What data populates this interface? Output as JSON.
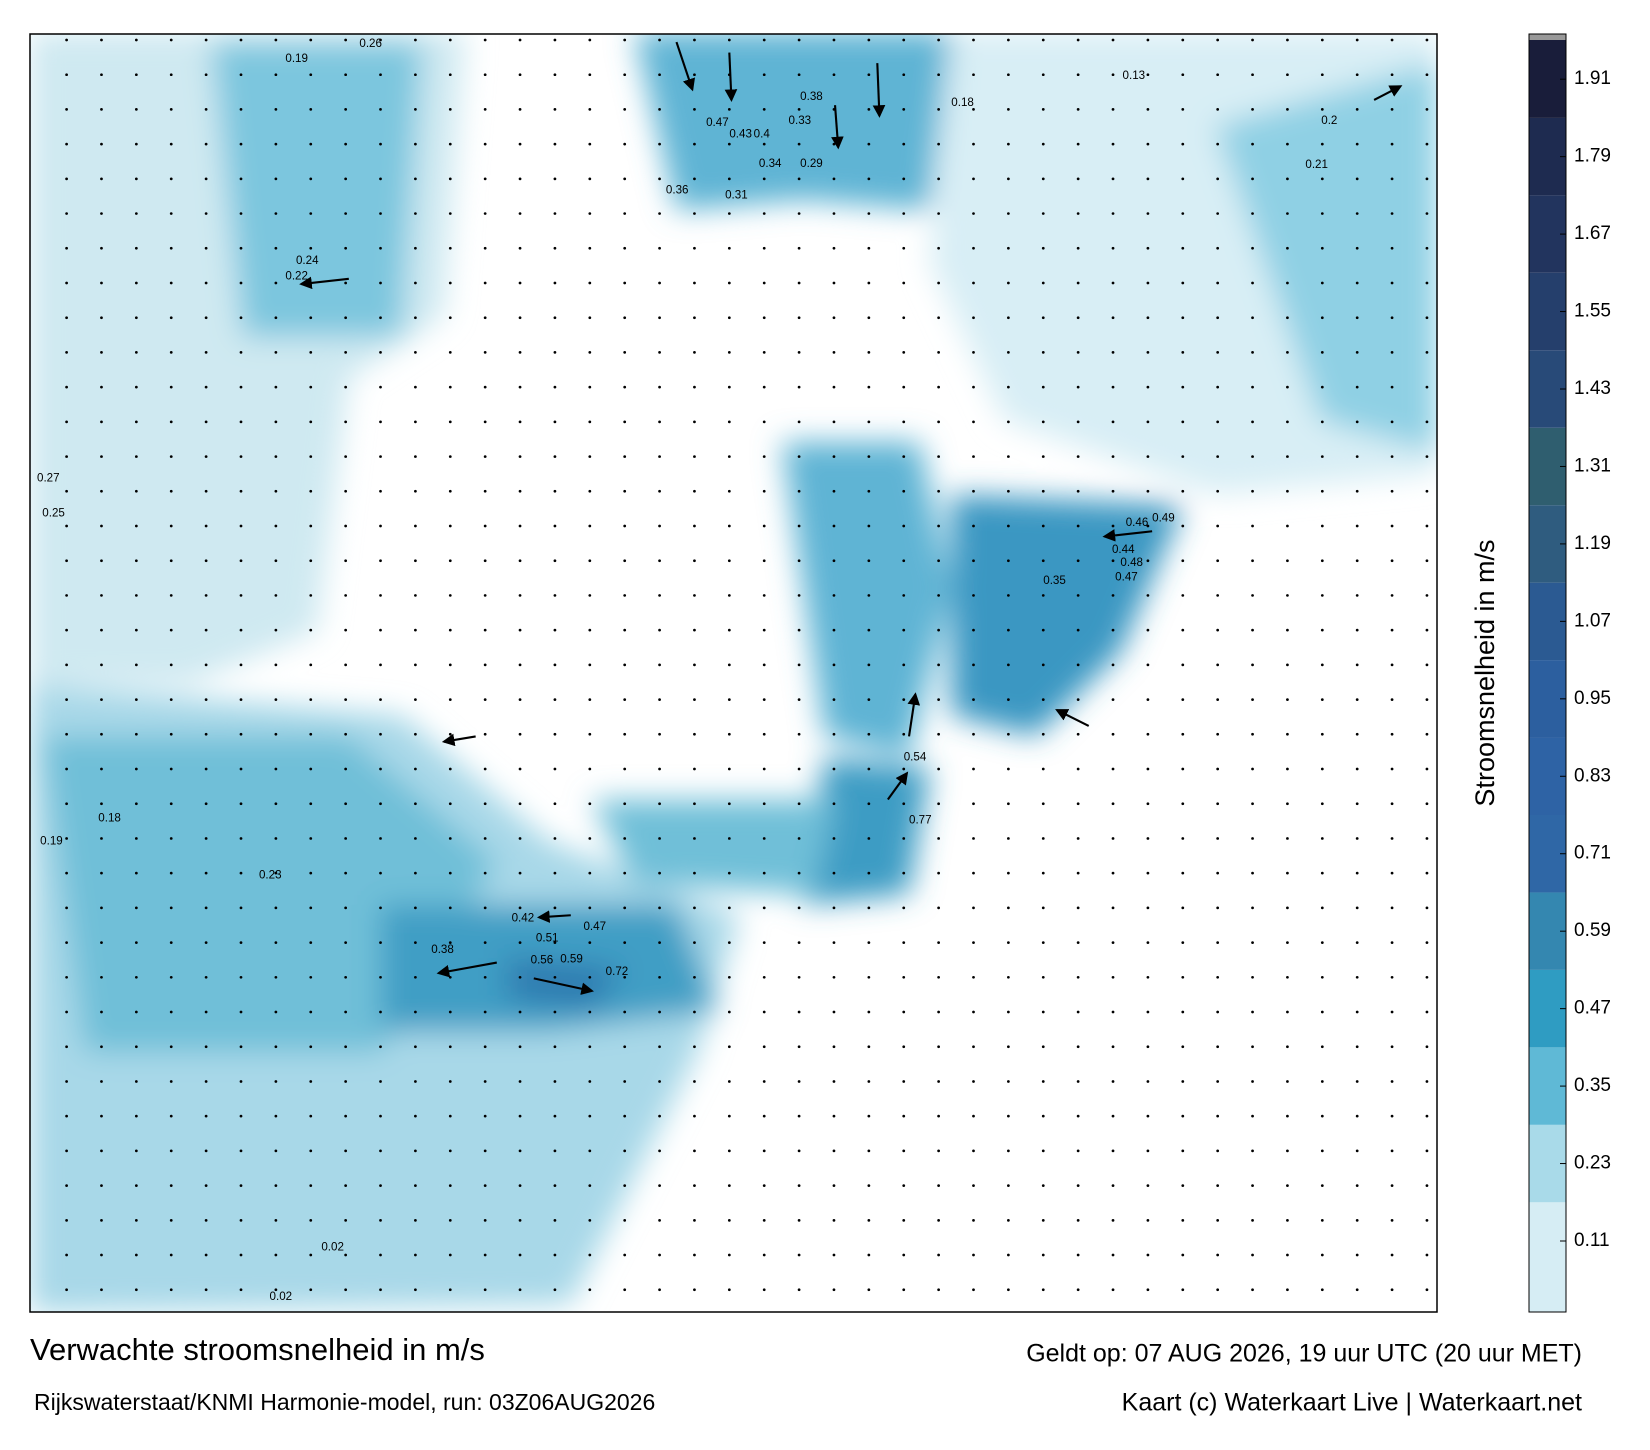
{
  "header": {
    "title": "Verwachte stroomsnelheid in m/s",
    "subtitle": "Rijkswaterstaat/KNMI Harmonie-model, run: 03Z06AUG2026",
    "valid": "Geldt op: 07 AUG 2026, 19 uur UTC (20 uur MET)",
    "credit": "Kaart (c) Waterkaart Live | Waterkaart.net"
  },
  "colorbar": {
    "label": "Stroomsnelheid in m/s",
    "range": [
      0,
      1.98
    ],
    "ticks": [
      0.11,
      0.23,
      0.35,
      0.47,
      0.59,
      0.71,
      0.83,
      0.95,
      1.07,
      1.19,
      1.31,
      1.43,
      1.55,
      1.67,
      1.79,
      1.91
    ],
    "colors": [
      "#d6edf4",
      "#a9dae9",
      "#5fb9d6",
      "#2f9cc2",
      "#3487b0",
      "#2f67a6",
      "#2e63a5",
      "#2c5f9f",
      "#2b5a92",
      "#2f5c7f",
      "#2f5e6f",
      "#284a78",
      "#253f6c",
      "#22345e",
      "#1e2b50",
      "#191d3a"
    ]
  },
  "map_labels": [
    0.47,
    0.43,
    0.4,
    0.38,
    0.33,
    0.34,
    0.29,
    0.36,
    0.31,
    0.46,
    0.49,
    0.44,
    0.48,
    0.47,
    0.35,
    0.54,
    0.77,
    0.42,
    0.51,
    0.47,
    0.59,
    0.72,
    0.56,
    0.38,
    0.21,
    0.2,
    0.18,
    0.26,
    0.19,
    0.24,
    0.22,
    0.27,
    0.25,
    0.19,
    0.18,
    0.23,
    0.02,
    0.02,
    0.13
  ]
}
